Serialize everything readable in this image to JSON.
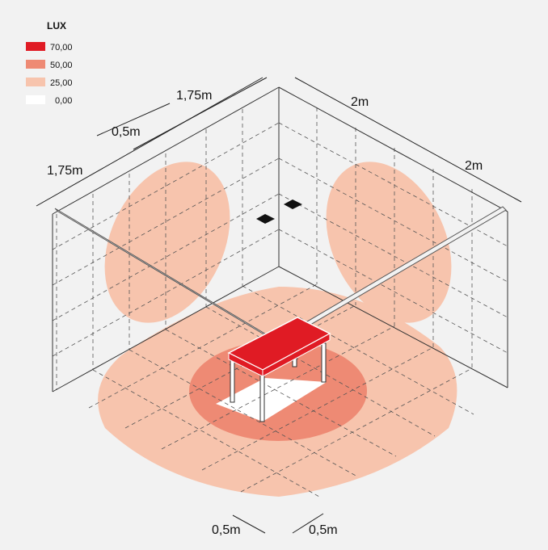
{
  "legend": {
    "title": "LUX",
    "items": [
      {
        "label": "70,00",
        "color": "#e01b24"
      },
      {
        "label": "50,00",
        "color": "#ee8a74"
      },
      {
        "label": "25,00",
        "color": "#f7c4ad"
      },
      {
        "label": "0,00",
        "color": "#ffffff"
      }
    ]
  },
  "dimensions": {
    "left_wall_width": "1,75m",
    "left_wall_offset": "0,5m",
    "left_wall_depth": "1,75m",
    "right_wall_width": "2m",
    "right_wall_depth": "2m",
    "floor_left": "0,5m",
    "floor_right": "0,5m"
  },
  "colors": {
    "level_70": "#e01b24",
    "level_50": "#ee8a74",
    "level_25": "#f7c4ad",
    "background": "#f2f2f2",
    "line": "#333333"
  },
  "objects": [
    "desk",
    "ceiling-light-left",
    "ceiling-light-right",
    "suspension-rods"
  ]
}
